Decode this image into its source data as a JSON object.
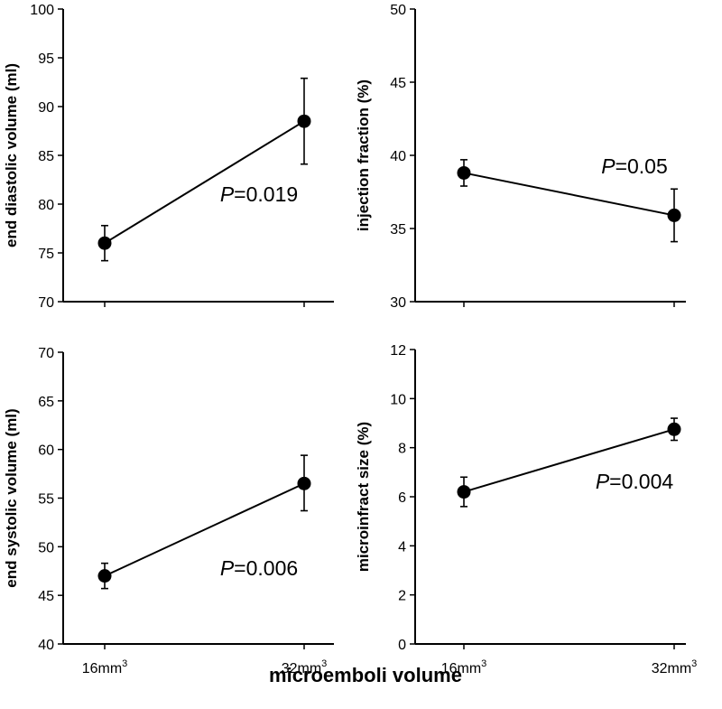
{
  "x_axis_title": "microemboli volume",
  "chart_data": [
    {
      "type": "line",
      "ylabel": "end diastolic volume (ml)",
      "ylim": [
        70,
        100
      ],
      "yticks": [
        70,
        75,
        80,
        85,
        90,
        95,
        100
      ],
      "categories": [
        "16mm",
        "32mm"
      ],
      "category_superscript": "3",
      "values": [
        76,
        88.5
      ],
      "error_low": [
        74.2,
        84.1
      ],
      "error_high": [
        77.8,
        92.9
      ],
      "annotation": {
        "prefix": "P",
        "text": "=0.019"
      }
    },
    {
      "type": "line",
      "ylabel": "injection fraction (%)",
      "ylim": [
        30,
        50
      ],
      "yticks": [
        30,
        35,
        40,
        45,
        50
      ],
      "categories": [
        "16mm",
        "32mm"
      ],
      "category_superscript": "3",
      "values": [
        38.8,
        35.9
      ],
      "error_low": [
        37.9,
        34.1
      ],
      "error_high": [
        39.7,
        37.7
      ],
      "annotation": {
        "prefix": "P",
        "text": "=0.05"
      }
    },
    {
      "type": "line",
      "ylabel": "end systolic volume (ml)",
      "ylim": [
        40,
        70
      ],
      "yticks": [
        40,
        45,
        50,
        55,
        60,
        65,
        70
      ],
      "categories": [
        "16mm",
        "32mm"
      ],
      "category_superscript": "3",
      "values": [
        47,
        56.5
      ],
      "error_low": [
        45.7,
        53.7
      ],
      "error_high": [
        48.3,
        59.4
      ],
      "annotation": {
        "prefix": "P",
        "text": "=0.006"
      }
    },
    {
      "type": "line",
      "ylabel": "microinfract size (%)",
      "ylim": [
        0,
        12
      ],
      "yticks": [
        0,
        2,
        4,
        6,
        8,
        10,
        12
      ],
      "categories": [
        "16mm",
        "32mm"
      ],
      "category_superscript": "3",
      "values": [
        6.2,
        8.75
      ],
      "error_low": [
        5.6,
        8.3
      ],
      "error_high": [
        6.8,
        9.2
      ],
      "annotation": {
        "prefix": "P",
        "text": "=0.004"
      }
    }
  ]
}
